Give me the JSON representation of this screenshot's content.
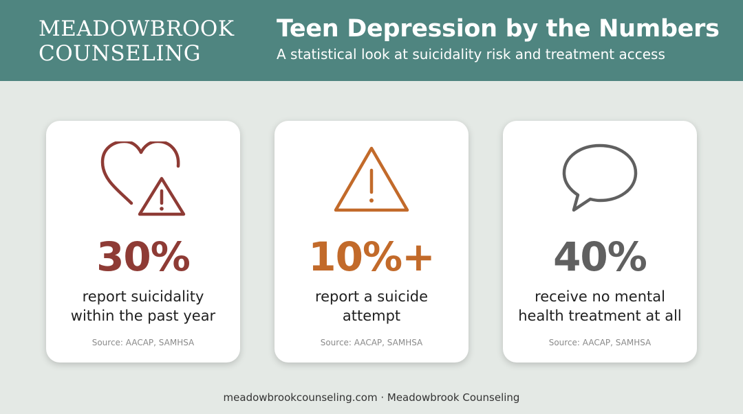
{
  "header": {
    "brand_line1": "MEADOWBROOK",
    "brand_line2": "COUNSELING",
    "title": "Teen Depression by the Numbers",
    "subtitle": "A statistical look at suicidality risk and treatment access"
  },
  "cards": [
    {
      "icon": "heart-warning-icon",
      "stat": "30%",
      "desc_line1": "report suicidality",
      "desc_line2": "within the past year",
      "source": "Source: AACAP, SAMHSA",
      "color": "#8e3b35"
    },
    {
      "icon": "warning-triangle-icon",
      "stat": "10%+",
      "desc_line1": "report a suicide",
      "desc_line2": "attempt",
      "source": "Source: AACAP, SAMHSA",
      "color": "#c26a2a"
    },
    {
      "icon": "speech-bubble-icon",
      "stat": "40%",
      "desc_line1": "receive no mental",
      "desc_line2": "health treatment at all",
      "source": "Source: AACAP, SAMHSA",
      "color": "#606060"
    }
  ],
  "footer": {
    "text": "meadowbrookcounseling.com · Meadowbrook Counseling"
  },
  "colors": {
    "header_bg": "#4f8580",
    "page_bg": "#e4e9e5"
  }
}
